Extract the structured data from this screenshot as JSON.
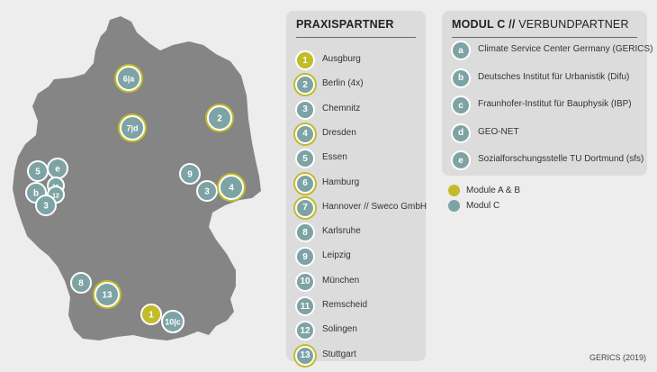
{
  "colors": {
    "background": "#ededed",
    "map_fill": "#858585",
    "panel": "#dcdcdc",
    "modul_a_b": "#c2bb2a",
    "modul_c": "#7ea3a4"
  },
  "praxis": {
    "title": "PRAXISPARTNER",
    "items": [
      {
        "num": "1",
        "label": "Ausgburg",
        "style": "gold"
      },
      {
        "num": "2",
        "label": "Berlin (4x)",
        "style": "ring"
      },
      {
        "num": "3",
        "label": "Chemnitz",
        "style": "plain"
      },
      {
        "num": "4",
        "label": "Dresden",
        "style": "ring"
      },
      {
        "num": "5",
        "label": "Essen",
        "style": "plain"
      },
      {
        "num": "6",
        "label": "Hamburg",
        "style": "ring"
      },
      {
        "num": "7",
        "label": "Hannover // Sweco GmbH",
        "style": "ring"
      },
      {
        "num": "8",
        "label": "Karlsruhe",
        "style": "plain"
      },
      {
        "num": "9",
        "label": "Leipzig",
        "style": "plain"
      },
      {
        "num": "10",
        "label": "München",
        "style": "plain"
      },
      {
        "num": "11",
        "label": "Remscheid",
        "style": "plain"
      },
      {
        "num": "12",
        "label": "Solingen",
        "style": "plain"
      },
      {
        "num": "13",
        "label": "Stuttgart",
        "style": "ring"
      }
    ]
  },
  "modul": {
    "title_bold": "MODUL C //",
    "title_thin": " VERBUNDPARTNER",
    "items": [
      {
        "letter": "a",
        "label": "Climate Service Center Germany (GERICS)"
      },
      {
        "letter": "b",
        "label": "Deutsches Institut für Urbanistik (Difu)"
      },
      {
        "letter": "c",
        "label": "Fraunhofer-Institut für Bauphysik (IBP)"
      },
      {
        "letter": "d",
        "label": "GEO-NET"
      },
      {
        "letter": "e",
        "label": "Sozialforschungsstelle TU Dortmund (sfs)"
      }
    ]
  },
  "legend": [
    {
      "label": "Module A & B",
      "color": "#c2bb2a"
    },
    {
      "label": "Modul C",
      "color": "#7ea3a4"
    }
  ],
  "map_markers": [
    {
      "label": "6|a",
      "style": "ring"
    },
    {
      "label": "7|d",
      "style": "ring"
    },
    {
      "label": "2",
      "style": "ring"
    },
    {
      "label": "9",
      "style": "plain"
    },
    {
      "label": "3",
      "style": "plain"
    },
    {
      "label": "4",
      "style": "ring"
    },
    {
      "label": "5",
      "style": "plain"
    },
    {
      "label": "e",
      "style": "plain"
    },
    {
      "label": "b",
      "style": "plain"
    },
    {
      "label": "11",
      "style": "plain"
    },
    {
      "label": "12",
      "style": "plain"
    },
    {
      "label": "3",
      "style": "plain"
    },
    {
      "label": "8",
      "style": "plain"
    },
    {
      "label": "13",
      "style": "ring"
    },
    {
      "label": "1",
      "style": "gold"
    },
    {
      "label": "10|c",
      "style": "plain"
    }
  ],
  "credit": "GERICS (2019)"
}
